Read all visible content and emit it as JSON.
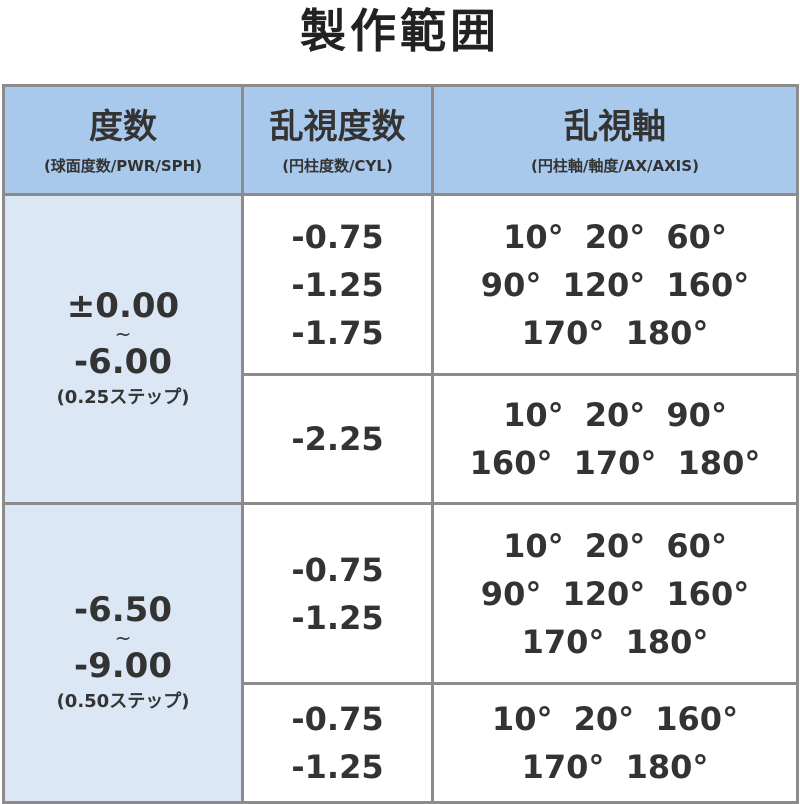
{
  "title": "製作範囲",
  "headers": [
    {
      "main": "度数",
      "sub": "(球面度数/PWR/SPH)"
    },
    {
      "main": "乱視度数",
      "sub": "(円柱度数/CYL)"
    },
    {
      "main": "乱視軸",
      "sub": "(円柱軸/軸度/AX/AXIS)"
    }
  ],
  "groups": [
    {
      "sph_from": "±0.00",
      "tilde": "~",
      "sph_to": "-6.00",
      "step": "(0.25ステップ)",
      "rows": [
        {
          "cyl": [
            "-0.75",
            "-1.25",
            "-1.75"
          ],
          "axis": [
            "10°  20°  60°",
            "90°  120°  160°",
            "170°  180°"
          ]
        },
        {
          "cyl": [
            "-2.25"
          ],
          "axis": [
            "10°  20°  90°",
            "160°  170°  180°"
          ]
        }
      ]
    },
    {
      "sph_from": "-6.50",
      "tilde": "~",
      "sph_to": "-9.00",
      "step": "(0.50ステップ)",
      "rows": [
        {
          "cyl": [
            "-0.75",
            "-1.25"
          ],
          "axis": [
            "10°  20°  60°",
            "90°  120°  160°",
            "170°  180°"
          ]
        },
        {
          "cyl": [
            "-0.75",
            "-1.25"
          ],
          "axis": [
            "10°  20°  160°",
            "170°  180°"
          ]
        }
      ]
    }
  ],
  "colors": {
    "header_bg": "#a9c9ec",
    "sph_bg": "#dbe7f5",
    "border": "#8c8c8c"
  }
}
